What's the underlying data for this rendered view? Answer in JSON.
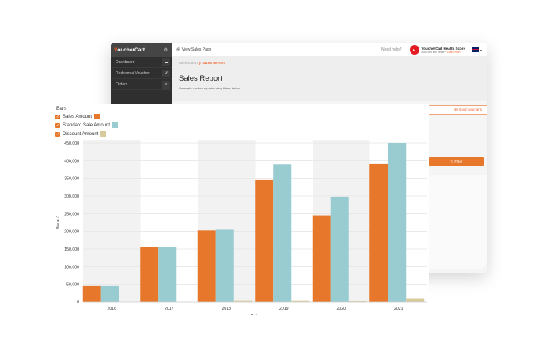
{
  "app": {
    "brand_prefix": "V",
    "brand_rest": "oucherCart",
    "brand_gear": "⚙",
    "view_sales_link": "View Sales Page",
    "need_help": "Need help?",
    "health_badge": "H",
    "health_title": "VoucherCart Health Score",
    "health_sub": "How is it still better?",
    "health_link": "Learn more",
    "flag_caret": "▾"
  },
  "sidebar": {
    "items": [
      {
        "label": "Dashboard",
        "icon": "☁"
      },
      {
        "label": "Redeem a Voucher",
        "icon": "↺"
      },
      {
        "label": "Orders",
        "icon": "≡"
      }
    ]
  },
  "breadcrumb": {
    "home": "DASHBOARD",
    "separator": "❯",
    "current": "SALES REPORT"
  },
  "page": {
    "title": "Sales Report",
    "description": "Generate custom reports using filters below",
    "results_text": "40 Gold vouchers",
    "filter_label": "▽ Filter"
  },
  "legend": {
    "title": "Bars",
    "check_glyph": "✓",
    "items": [
      {
        "label": "Sales Amount",
        "color": "#e7772a"
      },
      {
        "label": "Standard Sale Amount",
        "color": "#98ccd1"
      },
      {
        "label": "Discount Amount",
        "color": "#d9ca9b"
      }
    ]
  },
  "chart_data": {
    "type": "bar",
    "title": "",
    "xlabel": "Date",
    "ylabel": "Value £",
    "ylim": [
      0,
      450000
    ],
    "yticks": [
      0,
      50000,
      100000,
      150000,
      200000,
      250000,
      300000,
      350000,
      400000,
      450000
    ],
    "ytick_labels": [
      "0",
      "50,000",
      "100,000",
      "150,000",
      "200,000",
      "250,000",
      "300,000",
      "350,000",
      "400,000",
      "450,000"
    ],
    "grid": true,
    "alternating_bands": true,
    "categories": [
      "2016",
      "2017",
      "2018",
      "2019",
      "2020",
      "2021"
    ],
    "series": [
      {
        "name": "Sales Amount",
        "color": "#e7772a",
        "values": [
          45000,
          155000,
          203000,
          345000,
          245000,
          392000
        ]
      },
      {
        "name": "Standard Sale Amount",
        "color": "#98ccd1",
        "values": [
          45000,
          155000,
          205000,
          389000,
          298000,
          450000
        ]
      },
      {
        "name": "Discount Amount",
        "color": "#d9ca9b",
        "values": [
          0,
          0,
          3000,
          3000,
          2000,
          10000
        ]
      }
    ]
  }
}
